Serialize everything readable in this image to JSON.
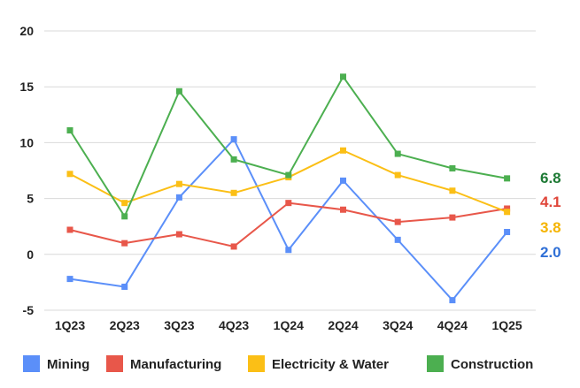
{
  "chart_data": {
    "type": "line",
    "categories": [
      "1Q23",
      "2Q23",
      "3Q23",
      "4Q23",
      "1Q24",
      "2Q24",
      "3Q24",
      "4Q24",
      "1Q25"
    ],
    "ylim": [
      -5,
      20
    ],
    "yticks": [
      "-5",
      "0",
      "5",
      "10",
      "15",
      "20"
    ],
    "grid": true,
    "legend_position": "bottom",
    "series": [
      {
        "name": "Mining",
        "color": "#5b8ff9",
        "values": [
          -2.2,
          -2.9,
          5.1,
          10.3,
          0.4,
          6.6,
          1.3,
          -4.1,
          2.0
        ],
        "end_label": "2.0"
      },
      {
        "name": "Manufacturing",
        "color": "#e8574a",
        "values": [
          2.2,
          1.0,
          1.8,
          0.7,
          4.6,
          4.0,
          2.9,
          3.3,
          4.1
        ],
        "end_label": "4.1"
      },
      {
        "name": "Electricity & Water",
        "color": "#fbbf16",
        "values": [
          7.2,
          4.6,
          6.3,
          5.5,
          6.9,
          9.3,
          7.1,
          5.7,
          3.8
        ],
        "end_label": "3.8"
      },
      {
        "name": "Construction",
        "color": "#4caf50",
        "values": [
          11.1,
          3.4,
          14.6,
          8.5,
          7.1,
          15.9,
          9.0,
          7.7,
          6.8
        ],
        "end_label": "6.8"
      }
    ],
    "end_label_colors": [
      "#2f6fd6",
      "#e0463a",
      "#f5b400",
      "#1e7a35"
    ]
  }
}
